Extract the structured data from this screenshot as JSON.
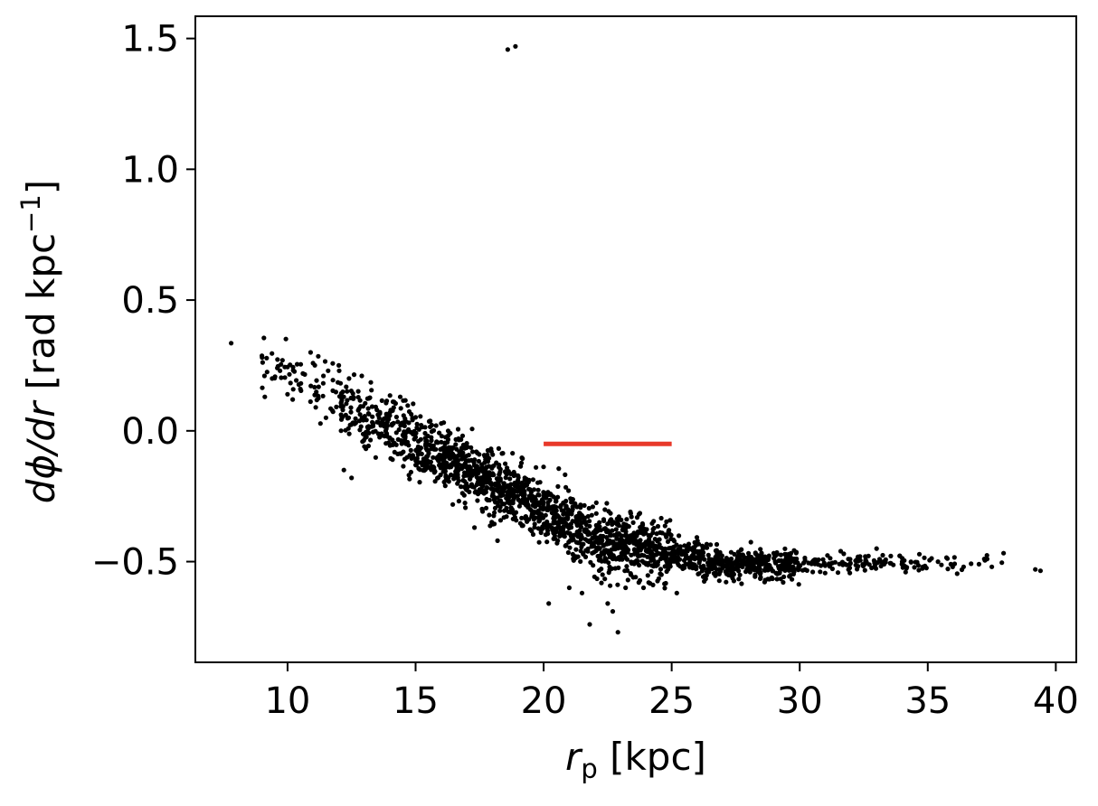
{
  "chart_data": {
    "type": "scatter",
    "title": "",
    "xlabel": {
      "main": "r",
      "sub": "p",
      "unit": " [kpc]"
    },
    "ylabel": {
      "main": "dϕ/dr",
      "unit": " [rad kpc",
      "sup": "−1",
      "close": "]"
    },
    "xlim": [
      6.4,
      40.8
    ],
    "ylim": [
      -0.885,
      1.585
    ],
    "xticks": [
      10,
      15,
      20,
      25,
      30,
      35,
      40
    ],
    "yticks": [
      -0.5,
      0.0,
      0.5,
      1.0,
      1.5
    ],
    "xtick_labels": [
      "10",
      "15",
      "20",
      "25",
      "30",
      "35",
      "40"
    ],
    "ytick_labels": [
      "−0.5",
      "0.0",
      "0.5",
      "1.0",
      "1.5"
    ],
    "grid": false,
    "colors": {
      "points": "#000000",
      "reference_line": "#e8392a"
    },
    "reference_segment": {
      "x": [
        20,
        25
      ],
      "y": [
        -0.05,
        -0.05
      ]
    },
    "series": [
      {
        "marker": "dot",
        "color": "#000000",
        "points": [
          [
            7.8,
            0.335
          ],
          [
            9.1,
            0.21
          ],
          [
            9.2,
            0.225
          ],
          [
            9.4,
            0.2
          ],
          [
            9.6,
            0.24
          ],
          [
            9.8,
            0.27
          ],
          [
            10.0,
            0.14
          ],
          [
            10.2,
            0.12
          ],
          [
            10.5,
            0.16
          ],
          [
            10.9,
            0.3
          ],
          [
            11.2,
            0.285
          ],
          [
            11.4,
            0.21
          ],
          [
            11.1,
            0.09
          ],
          [
            11.5,
            0.05
          ],
          [
            12.0,
            0.25
          ],
          [
            12.4,
            0.2
          ],
          [
            12.6,
            0.215
          ],
          [
            12.9,
            0.21
          ],
          [
            14.4,
            0.13
          ],
          [
            12.2,
            -0.15
          ],
          [
            12.5,
            -0.18
          ],
          [
            13.0,
            -0.06
          ],
          [
            15.8,
            0.02
          ],
          [
            16.1,
            -0.13
          ],
          [
            16.6,
            -0.07
          ],
          [
            17.1,
            -0.17
          ],
          [
            19.0,
            -0.2
          ],
          [
            19.7,
            -0.14
          ],
          [
            17.3,
            -0.37
          ],
          [
            18.2,
            -0.42
          ],
          [
            18.6,
            1.458
          ],
          [
            18.9,
            1.47
          ],
          [
            20.2,
            -0.66
          ],
          [
            21.0,
            -0.6
          ],
          [
            21.5,
            -0.62
          ],
          [
            21.8,
            -0.74
          ],
          [
            22.3,
            -0.55
          ],
          [
            22.5,
            -0.66
          ],
          [
            22.7,
            -0.69
          ],
          [
            22.9,
            -0.77
          ],
          [
            23.2,
            -0.6
          ],
          [
            23.9,
            -0.6
          ],
          [
            24.6,
            -0.55
          ],
          [
            25.2,
            -0.62
          ],
          [
            23.5,
            -0.56
          ],
          [
            24.1,
            -0.58
          ],
          [
            25.9,
            -0.49
          ],
          [
            26.4,
            -0.53
          ],
          [
            26.9,
            -0.51
          ],
          [
            27.5,
            -0.5
          ],
          [
            28.1,
            -0.53
          ],
          [
            28.6,
            -0.5
          ],
          [
            29.2,
            -0.52
          ],
          [
            29.8,
            -0.49
          ],
          [
            30.5,
            -0.5
          ],
          [
            31.2,
            -0.51
          ],
          [
            31.9,
            -0.49
          ],
          [
            32.6,
            -0.5
          ],
          [
            33.3,
            -0.51
          ],
          [
            34.0,
            -0.5
          ],
          [
            34.8,
            -0.52
          ],
          [
            35.4,
            -0.5
          ],
          [
            35.9,
            -0.51
          ],
          [
            36.4,
            -0.52
          ],
          [
            37.0,
            -0.51
          ],
          [
            37.5,
            -0.52
          ],
          [
            39.2,
            -0.53
          ],
          [
            39.4,
            -0.535
          ],
          [
            33.0,
            -0.45
          ],
          [
            31.6,
            -0.46
          ]
        ]
      }
    ]
  }
}
